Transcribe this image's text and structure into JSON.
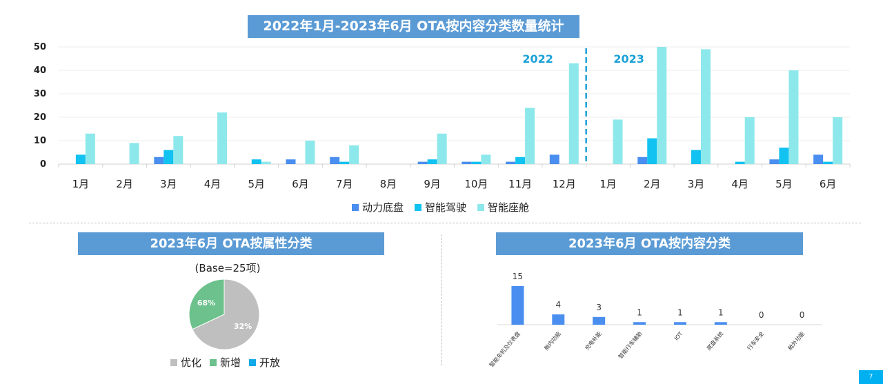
{
  "titles": {
    "main": "2022年1月-2023年6月 OTA按内容分类数量统计",
    "pie": "2023年6月 OTA按属性分类",
    "bar2": "2023年6月 OTA按内容分类"
  },
  "page_number": "7",
  "chart_data": [
    {
      "type": "bar",
      "title": "2022年1月-2023年6月 OTA按内容分类数量统计",
      "categories": [
        "1月",
        "2月",
        "3月",
        "4月",
        "5月",
        "6月",
        "7月",
        "8月",
        "9月",
        "10月",
        "11月",
        "12月",
        "1月",
        "2月",
        "3月",
        "4月",
        "5月",
        "6月"
      ],
      "year_labels": [
        "2022",
        "2023"
      ],
      "ylim": [
        0,
        50
      ],
      "yticks": [
        0,
        10,
        20,
        30,
        40,
        50
      ],
      "legend_position": "bottom",
      "series": [
        {
          "name": "动力底盘",
          "color": "#4a8ef0",
          "values": [
            0,
            0,
            3,
            0,
            0,
            2,
            3,
            0,
            1,
            1,
            1,
            4,
            0,
            3,
            0,
            0,
            2,
            4
          ]
        },
        {
          "name": "智能驾驶",
          "color": "#12c2f0",
          "values": [
            4,
            0,
            6,
            0,
            2,
            0,
            1,
            0,
            2,
            1,
            3,
            0,
            0,
            11,
            6,
            1,
            7,
            1
          ]
        },
        {
          "name": "智能座舱",
          "color": "#8de8ec",
          "values": [
            13,
            9,
            12,
            22,
            1,
            10,
            8,
            0,
            13,
            4,
            24,
            43,
            19,
            50,
            49,
            20,
            40,
            20
          ]
        }
      ]
    },
    {
      "type": "pie",
      "title": "2023年6月 OTA按属性分类",
      "subtitle": "(Base=25项)",
      "legend_position": "bottom",
      "slices": [
        {
          "name": "优化",
          "value": 68,
          "label": "68%",
          "color": "#bfbfbf"
        },
        {
          "name": "新增",
          "value": 32,
          "label": "32%",
          "color": "#6cc18c"
        },
        {
          "name": "开放",
          "value": 0,
          "label": "",
          "color": "#12a9e8"
        }
      ]
    },
    {
      "type": "bar",
      "title": "2023年6月 OTA按内容分类",
      "categories": [
        "智能车机及仪表盘",
        "舱内功能",
        "充电补能",
        "智能行车辅助",
        "IOT",
        "底盘系统",
        "行车安全",
        "舱外功能"
      ],
      "values": [
        15,
        4,
        3,
        1,
        1,
        1,
        0,
        0
      ],
      "color": "#4a8ef0"
    }
  ]
}
